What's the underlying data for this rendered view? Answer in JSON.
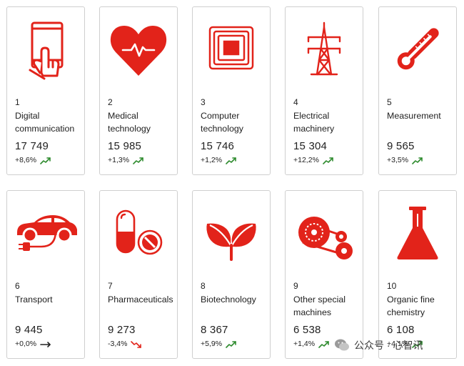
{
  "colors": {
    "accent": "#e2231a",
    "trend_up": "#2e8b2e",
    "trend_down": "#e2231a",
    "trend_flat": "#222222"
  },
  "cards": [
    {
      "rank": "1",
      "name_line1": "Digital",
      "name_line2": "communication",
      "value": "17 749",
      "change": "+8,6%",
      "trend": "up",
      "icon": "tablet-touch-icon"
    },
    {
      "rank": "2",
      "name_line1": "Medical",
      "name_line2": "technology",
      "value": "15 985",
      "change": "+1,3%",
      "trend": "up",
      "icon": "heart-pulse-icon"
    },
    {
      "rank": "3",
      "name_line1": "Computer",
      "name_line2": "technology",
      "value": "15 746",
      "change": "+1,2%",
      "trend": "up",
      "icon": "chip-icon"
    },
    {
      "rank": "4",
      "name_line1": "Electrical",
      "name_line2": "machinery",
      "value": "15 304",
      "change": "+12,2%",
      "trend": "up",
      "icon": "power-tower-icon"
    },
    {
      "rank": "5",
      "name_line1": "Measurement",
      "name_line2": "",
      "value": "9 565",
      "change": "+3,5%",
      "trend": "up",
      "icon": "thermometer-icon"
    },
    {
      "rank": "6",
      "name_line1": "Transport",
      "name_line2": "",
      "value": "9 445",
      "change": "+0,0%",
      "trend": "flat",
      "icon": "electric-car-icon"
    },
    {
      "rank": "7",
      "name_line1": "Pharmaceuticals",
      "name_line2": "",
      "value": "9 273",
      "change": "-3,4%",
      "trend": "down",
      "icon": "pills-icon"
    },
    {
      "rank": "8",
      "name_line1": "Biotechnology",
      "name_line2": "",
      "value": "8 367",
      "change": "+5,9%",
      "trend": "up",
      "icon": "leaves-icon"
    },
    {
      "rank": "9",
      "name_line1": "Other special",
      "name_line2": "machines",
      "value": "6 538",
      "change": "+1,4%",
      "trend": "up",
      "icon": "gears-belt-icon"
    },
    {
      "rank": "10",
      "name_line1": "Organic fine",
      "name_line2": "chemistry",
      "value": "6 108",
      "change": "+4,1%",
      "trend": "up",
      "icon": "flask-icon"
    }
  ],
  "watermark": {
    "text": "公众号 · 心智讯"
  }
}
